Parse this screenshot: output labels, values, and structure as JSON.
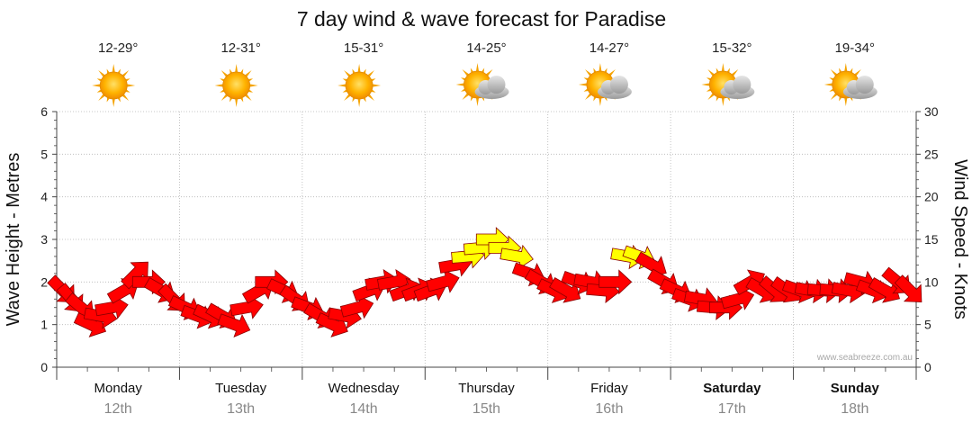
{
  "chart_data": {
    "type": "line",
    "title": "7 day wind & wave forecast for Paradise",
    "ylabel_left": "Wave Height - Metres",
    "ylabel_right": "Wind Speed - Knots",
    "ylim_left": [
      0,
      6
    ],
    "ylim_right": [
      0,
      30
    ],
    "yticks_left": [
      "0",
      "1",
      "2",
      "3",
      "4",
      "5",
      "6"
    ],
    "yticks_right": [
      "0",
      "5",
      "10",
      "15",
      "20",
      "25",
      "30"
    ],
    "grid": true,
    "watermark": "www.seabreeze.com.au",
    "days": [
      {
        "name": "Monday",
        "date": "12th",
        "temp": "12-29°",
        "weather": "sunny-icon",
        "bold": false
      },
      {
        "name": "Tuesday",
        "date": "13th",
        "temp": "12-31°",
        "weather": "sunny-icon",
        "bold": false
      },
      {
        "name": "Wednesday",
        "date": "14th",
        "temp": "15-31°",
        "weather": "sunny-icon",
        "bold": false
      },
      {
        "name": "Thursday",
        "date": "15th",
        "temp": "14-25°",
        "weather": "partly-cloudy-icon",
        "bold": false
      },
      {
        "name": "Friday",
        "date": "16th",
        "temp": "14-27°",
        "weather": "partly-cloudy-icon",
        "bold": false
      },
      {
        "name": "Saturday",
        "date": "17th",
        "temp": "15-32°",
        "weather": "partly-cloudy-icon",
        "bold": true
      },
      {
        "name": "Sunday",
        "date": "18th",
        "temp": "19-34°",
        "weather": "partly-cloudy-icon",
        "bold": true
      }
    ],
    "series": [
      {
        "name": "Wind Speed",
        "unit": "knots",
        "marker": "wind-direction-arrow",
        "color_normal": "#ff0000",
        "color_high": "#ffff00",
        "high_threshold_knots": 13,
        "x_days": [
          0.05,
          0.12,
          0.2,
          0.28,
          0.36,
          0.45,
          0.55,
          0.65,
          0.75,
          0.85,
          0.95,
          1.05,
          1.15,
          1.25,
          1.35,
          1.45,
          1.55,
          1.65,
          1.75,
          1.85,
          1.95,
          2.05,
          2.15,
          2.25,
          2.35,
          2.45,
          2.55,
          2.65,
          2.75,
          2.85,
          2.95,
          3.05,
          3.15,
          3.25,
          3.35,
          3.45,
          3.55,
          3.65,
          3.75,
          3.85,
          3.95,
          4.05,
          4.15,
          4.25,
          4.35,
          4.45,
          4.55,
          4.65,
          4.75,
          4.85,
          4.95,
          5.05,
          5.15,
          5.25,
          5.35,
          5.45,
          5.55,
          5.65,
          5.75,
          5.85,
          5.95,
          6.05,
          6.15,
          6.25,
          6.35,
          6.45,
          6.55,
          6.65,
          6.75,
          6.85,
          6.95
        ],
        "values": [
          9,
          8,
          7,
          5,
          6,
          7,
          9,
          11,
          10,
          9,
          8,
          7,
          6,
          6,
          6,
          5,
          7,
          9,
          10,
          9,
          8,
          7,
          6,
          5,
          6,
          7,
          9,
          10,
          10,
          9,
          9,
          9,
          10,
          12,
          13,
          14,
          15,
          14,
          13,
          11,
          10,
          9,
          9,
          10,
          10,
          9,
          10,
          13,
          13,
          12,
          10,
          9,
          8,
          8,
          7,
          7,
          8,
          10,
          9,
          9,
          9,
          9,
          9,
          9,
          9,
          9,
          10,
          9,
          9,
          10,
          9
        ],
        "direction_deg": [
          135,
          140,
          130,
          115,
          100,
          80,
          60,
          45,
          90,
          120,
          135,
          115,
          110,
          115,
          120,
          110,
          80,
          60,
          90,
          115,
          125,
          110,
          120,
          115,
          100,
          75,
          70,
          80,
          80,
          70,
          70,
          70,
          75,
          80,
          85,
          85,
          90,
          90,
          100,
          110,
          120,
          115,
          120,
          110,
          100,
          95,
          90,
          100,
          110,
          120,
          120,
          115,
          110,
          100,
          95,
          90,
          75,
          60,
          120,
          130,
          125,
          110,
          100,
          95,
          95,
          100,
          105,
          110,
          120,
          130,
          135
        ]
      }
    ]
  }
}
